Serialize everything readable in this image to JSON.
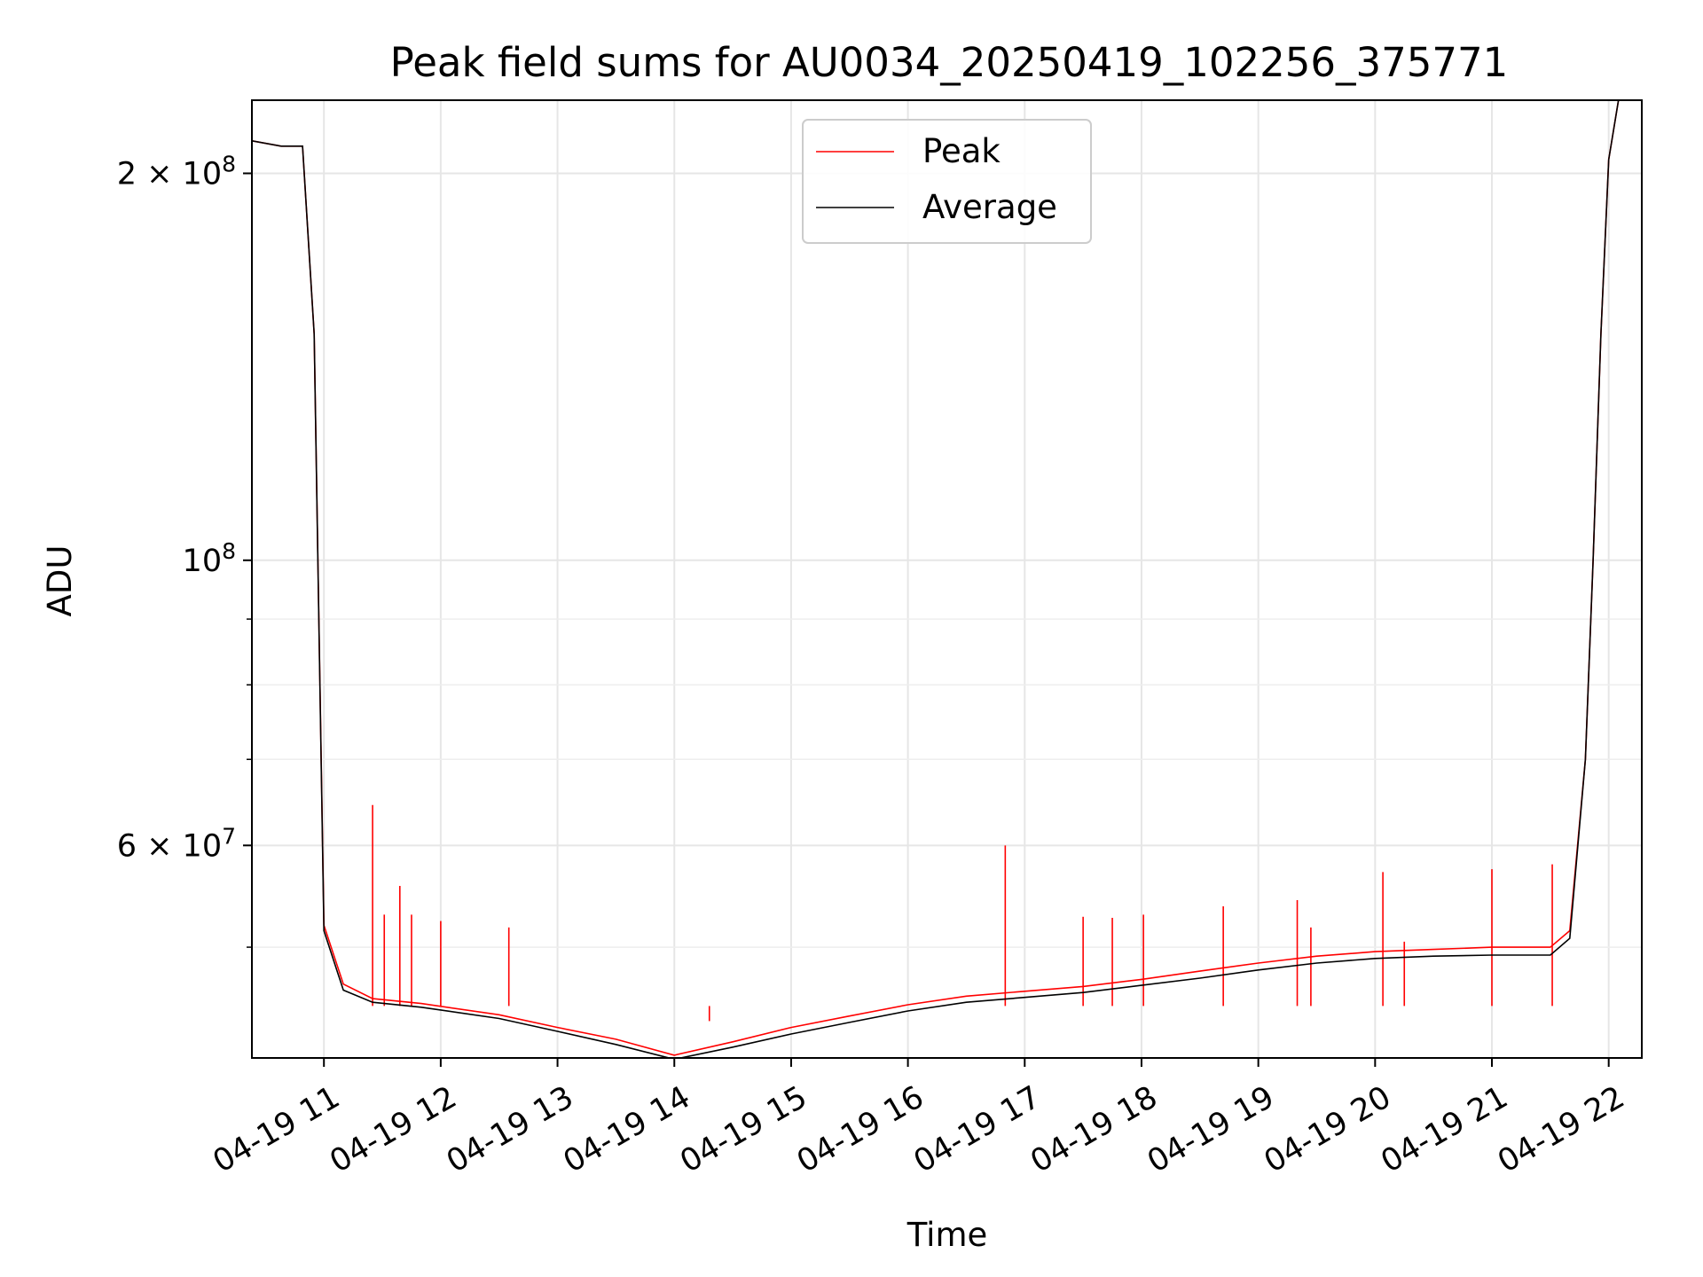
{
  "chart_data": {
    "type": "line",
    "title": "Peak field sums for AU0034_20250419_102256_375771",
    "xlabel": "Time",
    "ylabel": "ADU",
    "x_scale": "time",
    "y_scale": "log",
    "xlim": [
      "2025-04-19 10:23",
      "2025-04-19 22:17"
    ],
    "ylim": [
      41000000,
      228000000
    ],
    "x_ticks": [
      {
        "value": "2025-04-19 11:00",
        "label": "04-19 11"
      },
      {
        "value": "2025-04-19 12:00",
        "label": "04-19 12"
      },
      {
        "value": "2025-04-19 13:00",
        "label": "04-19 13"
      },
      {
        "value": "2025-04-19 14:00",
        "label": "04-19 14"
      },
      {
        "value": "2025-04-19 15:00",
        "label": "04-19 15"
      },
      {
        "value": "2025-04-19 16:00",
        "label": "04-19 16"
      },
      {
        "value": "2025-04-19 17:00",
        "label": "04-19 17"
      },
      {
        "value": "2025-04-19 18:00",
        "label": "04-19 18"
      },
      {
        "value": "2025-04-19 19:00",
        "label": "04-19 19"
      },
      {
        "value": "2025-04-19 20:00",
        "label": "04-19 20"
      },
      {
        "value": "2025-04-19 21:00",
        "label": "04-19 21"
      },
      {
        "value": "2025-04-19 22:00",
        "label": "04-19 22"
      }
    ],
    "y_major_ticks": [
      {
        "value": 60000000,
        "mantissa": "6",
        "exponent": "7",
        "label": "6 × 10^7"
      },
      {
        "value": 100000000,
        "mantissa": "",
        "exponent": "8",
        "label": "10^8"
      },
      {
        "value": 200000000,
        "mantissa": "2",
        "exponent": "8",
        "label": "2 × 10^8"
      }
    ],
    "y_minor_ticks": [
      50000000,
      70000000,
      80000000,
      90000000
    ],
    "grid": true,
    "legend": {
      "position": "top-center",
      "entries": [
        "Peak",
        "Average"
      ]
    },
    "series": [
      {
        "name": "Peak",
        "color": "#ff0000",
        "x": [
          "2025-04-19 10:23",
          "2025-04-19 10:38",
          "2025-04-19 10:49",
          "2025-04-19 10:55",
          "2025-04-19 11:00",
          "2025-04-19 11:10",
          "2025-04-19 11:25",
          "2025-04-19 11:50",
          "2025-04-19 12:30",
          "2025-04-19 13:00",
          "2025-04-19 13:30",
          "2025-04-19 14:00",
          "2025-04-19 14:30",
          "2025-04-19 15:00",
          "2025-04-19 15:30",
          "2025-04-19 16:00",
          "2025-04-19 16:30",
          "2025-04-19 17:00",
          "2025-04-19 17:30",
          "2025-04-19 18:00",
          "2025-04-19 18:30",
          "2025-04-19 19:00",
          "2025-04-19 19:30",
          "2025-04-19 20:00",
          "2025-04-19 20:30",
          "2025-04-19 21:00",
          "2025-04-19 21:30",
          "2025-04-19 21:40",
          "2025-04-19 21:48",
          "2025-04-19 21:52",
          "2025-04-19 21:56",
          "2025-04-19 22:00",
          "2025-04-19 22:05"
        ],
        "y": [
          212000000,
          210000000,
          210000000,
          150000000,
          52000000,
          46800000,
          45600000,
          45200000,
          44300000,
          43300000,
          42400000,
          41200000,
          42200000,
          43300000,
          44200000,
          45100000,
          45800000,
          46200000,
          46600000,
          47200000,
          47900000,
          48600000,
          49200000,
          49600000,
          49800000,
          50000000,
          50000000,
          51500000,
          70000000,
          100000000,
          150000000,
          205000000,
          228000000
        ],
        "spikes": [
          {
            "x": "2025-04-19 11:25",
            "y": 64500000
          },
          {
            "x": "2025-04-19 11:31",
            "y": 53000000
          },
          {
            "x": "2025-04-19 11:39",
            "y": 55800000
          },
          {
            "x": "2025-04-19 11:45",
            "y": 53000000
          },
          {
            "x": "2025-04-19 12:00",
            "y": 52400000
          },
          {
            "x": "2025-04-19 12:35",
            "y": 51800000
          },
          {
            "x": "2025-04-19 14:18",
            "y": 43800000
          },
          {
            "x": "2025-04-19 16:50",
            "y": 60000000
          },
          {
            "x": "2025-04-19 17:30",
            "y": 52800000
          },
          {
            "x": "2025-04-19 17:45",
            "y": 52700000
          },
          {
            "x": "2025-04-19 18:01",
            "y": 53000000
          },
          {
            "x": "2025-04-19 18:42",
            "y": 53800000
          },
          {
            "x": "2025-04-19 19:20",
            "y": 54400000
          },
          {
            "x": "2025-04-19 19:27",
            "y": 51800000
          },
          {
            "x": "2025-04-19 20:04",
            "y": 57200000
          },
          {
            "x": "2025-04-19 20:15",
            "y": 50500000
          },
          {
            "x": "2025-04-19 21:00",
            "y": 57500000
          },
          {
            "x": "2025-04-19 21:31",
            "y": 58000000
          }
        ]
      },
      {
        "name": "Average",
        "color": "#000000",
        "x": [
          "2025-04-19 10:23",
          "2025-04-19 10:38",
          "2025-04-19 10:49",
          "2025-04-19 10:55",
          "2025-04-19 11:00",
          "2025-04-19 11:10",
          "2025-04-19 11:25",
          "2025-04-19 11:50",
          "2025-04-19 12:30",
          "2025-04-19 13:00",
          "2025-04-19 13:30",
          "2025-04-19 14:00",
          "2025-04-19 14:30",
          "2025-04-19 15:00",
          "2025-04-19 15:30",
          "2025-04-19 16:00",
          "2025-04-19 16:30",
          "2025-04-19 17:00",
          "2025-04-19 17:30",
          "2025-04-19 18:00",
          "2025-04-19 18:30",
          "2025-04-19 19:00",
          "2025-04-19 19:30",
          "2025-04-19 20:00",
          "2025-04-19 20:30",
          "2025-04-19 21:00",
          "2025-04-19 21:30",
          "2025-04-19 21:40",
          "2025-04-19 21:48",
          "2025-04-19 21:52",
          "2025-04-19 21:56",
          "2025-04-19 22:00",
          "2025-04-19 22:05"
        ],
        "y": [
          212000000,
          210000000,
          210000000,
          150000000,
          51500000,
          46300000,
          45300000,
          44900000,
          44000000,
          43000000,
          42000000,
          40900000,
          41800000,
          42800000,
          43700000,
          44600000,
          45300000,
          45700000,
          46100000,
          46700000,
          47300000,
          48000000,
          48600000,
          49000000,
          49200000,
          49300000,
          49300000,
          50800000,
          70000000,
          100000000,
          150000000,
          205000000,
          228000000
        ]
      }
    ]
  }
}
